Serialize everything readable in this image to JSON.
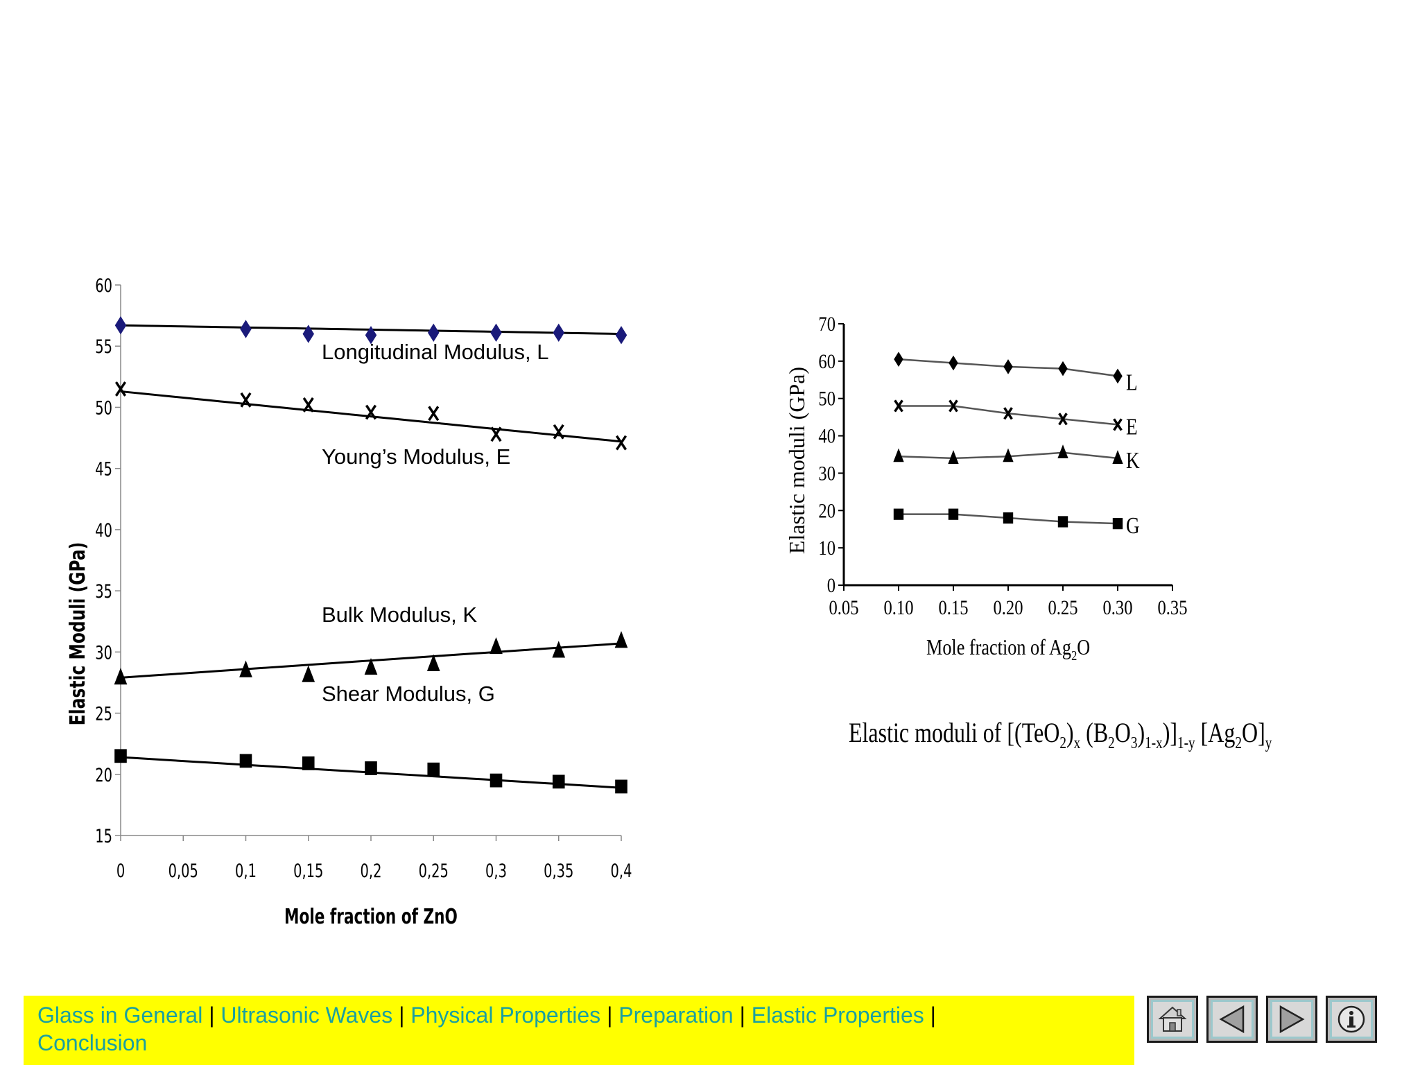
{
  "chart_data": [
    {
      "type": "line",
      "title": "",
      "xlabel": "Mole fraction of ZnO",
      "ylabel": "Elastic Moduli (GPa)",
      "xlim": [
        0,
        0.4
      ],
      "ylim": [
        15,
        60
      ],
      "x_ticks": [
        "0",
        "0,05",
        "0,1",
        "0,15",
        "0,2",
        "0,25",
        "0,3",
        "0,35",
        "0,4"
      ],
      "y_ticks": [
        "15",
        "20",
        "25",
        "30",
        "35",
        "40",
        "45",
        "50",
        "55",
        "60"
      ],
      "x": [
        0,
        0.1,
        0.15,
        0.2,
        0.25,
        0.3,
        0.35,
        0.4
      ],
      "series": [
        {
          "name": "Longitudinal Modulus, L",
          "marker": "diamond",
          "color": "#1a1a7a",
          "values": [
            56.7,
            56.4,
            56.0,
            55.9,
            56.1,
            56.1,
            56.1,
            55.9
          ],
          "trend": [
            56.7,
            56.0
          ]
        },
        {
          "name": "Young’s Modulus, E",
          "marker": "x",
          "color": "#000000",
          "values": [
            51.5,
            50.6,
            50.2,
            49.6,
            49.5,
            47.8,
            48.0,
            47.1
          ],
          "trend": [
            51.3,
            47.2
          ]
        },
        {
          "name": "Bulk Modulus, K",
          "marker": "triangle",
          "color": "#000000",
          "values": [
            27.9,
            28.5,
            28.1,
            28.7,
            29.0,
            30.4,
            30.1,
            30.9
          ],
          "trend": [
            27.9,
            30.7
          ]
        },
        {
          "name": "Shear Modulus, G",
          "marker": "square",
          "color": "#000000",
          "values": [
            21.5,
            21.1,
            20.9,
            20.5,
            20.4,
            19.5,
            19.4,
            19.0
          ],
          "trend": [
            21.4,
            18.9
          ]
        }
      ]
    },
    {
      "type": "line",
      "title": "Elastic moduli of [(TeO2)x (B2O3)1-x)]1-y [Ag2O]y",
      "xlabel": "Mole fraction of Ag2O",
      "ylabel": "Elastic moduli (GPa)",
      "xlim": [
        0.05,
        0.35
      ],
      "ylim": [
        0,
        70
      ],
      "x_ticks": [
        "0.05",
        "0.10",
        "0.15",
        "0.20",
        "0.25",
        "0.30",
        "0.35"
      ],
      "y_ticks": [
        "0",
        "10",
        "20",
        "30",
        "40",
        "50",
        "60",
        "70"
      ],
      "x": [
        0.1,
        0.15,
        0.2,
        0.25,
        0.3
      ],
      "series": [
        {
          "name": "L",
          "marker": "diamond",
          "values": [
            60.5,
            59.5,
            58.5,
            58.0,
            56.0
          ]
        },
        {
          "name": "E",
          "marker": "x",
          "values": [
            48.0,
            48.0,
            46.0,
            44.5,
            43.0
          ]
        },
        {
          "name": "K",
          "marker": "triangle",
          "values": [
            34.5,
            34.0,
            34.5,
            35.5,
            34.0
          ]
        },
        {
          "name": "G",
          "marker": "square",
          "values": [
            19.0,
            19.0,
            18.0,
            17.0,
            16.5
          ]
        }
      ]
    }
  ],
  "caption": {
    "prefix": "Elastic moduli of [(TeO",
    "sub1": "2",
    "s2": ")",
    "sub2": "x",
    "s3": " (B",
    "sub3": "2",
    "s4": "O",
    "sub4": "3",
    "s5": ")",
    "sub5": "1-x",
    "s6": ")]",
    "sub6": "1-y",
    "s7": " [Ag",
    "sub7": "2",
    "s8": "O]",
    "sub8": "y"
  },
  "right_xlabel": {
    "main": "Mole fraction of Ag",
    "sub": "2",
    "tail": "O"
  },
  "nav": {
    "links": [
      "Glass in General",
      "Ultrasonic Waves",
      "Physical Properties",
      "Preparation",
      "Elastic Properties",
      "Conclusion"
    ],
    "separator": "|"
  },
  "buttons": [
    {
      "name": "home-button",
      "icon": "home-icon"
    },
    {
      "name": "previous-button",
      "icon": "triangle-left-icon"
    },
    {
      "name": "next-button",
      "icon": "triangle-right-icon"
    },
    {
      "name": "info-button",
      "icon": "info-icon"
    }
  ]
}
